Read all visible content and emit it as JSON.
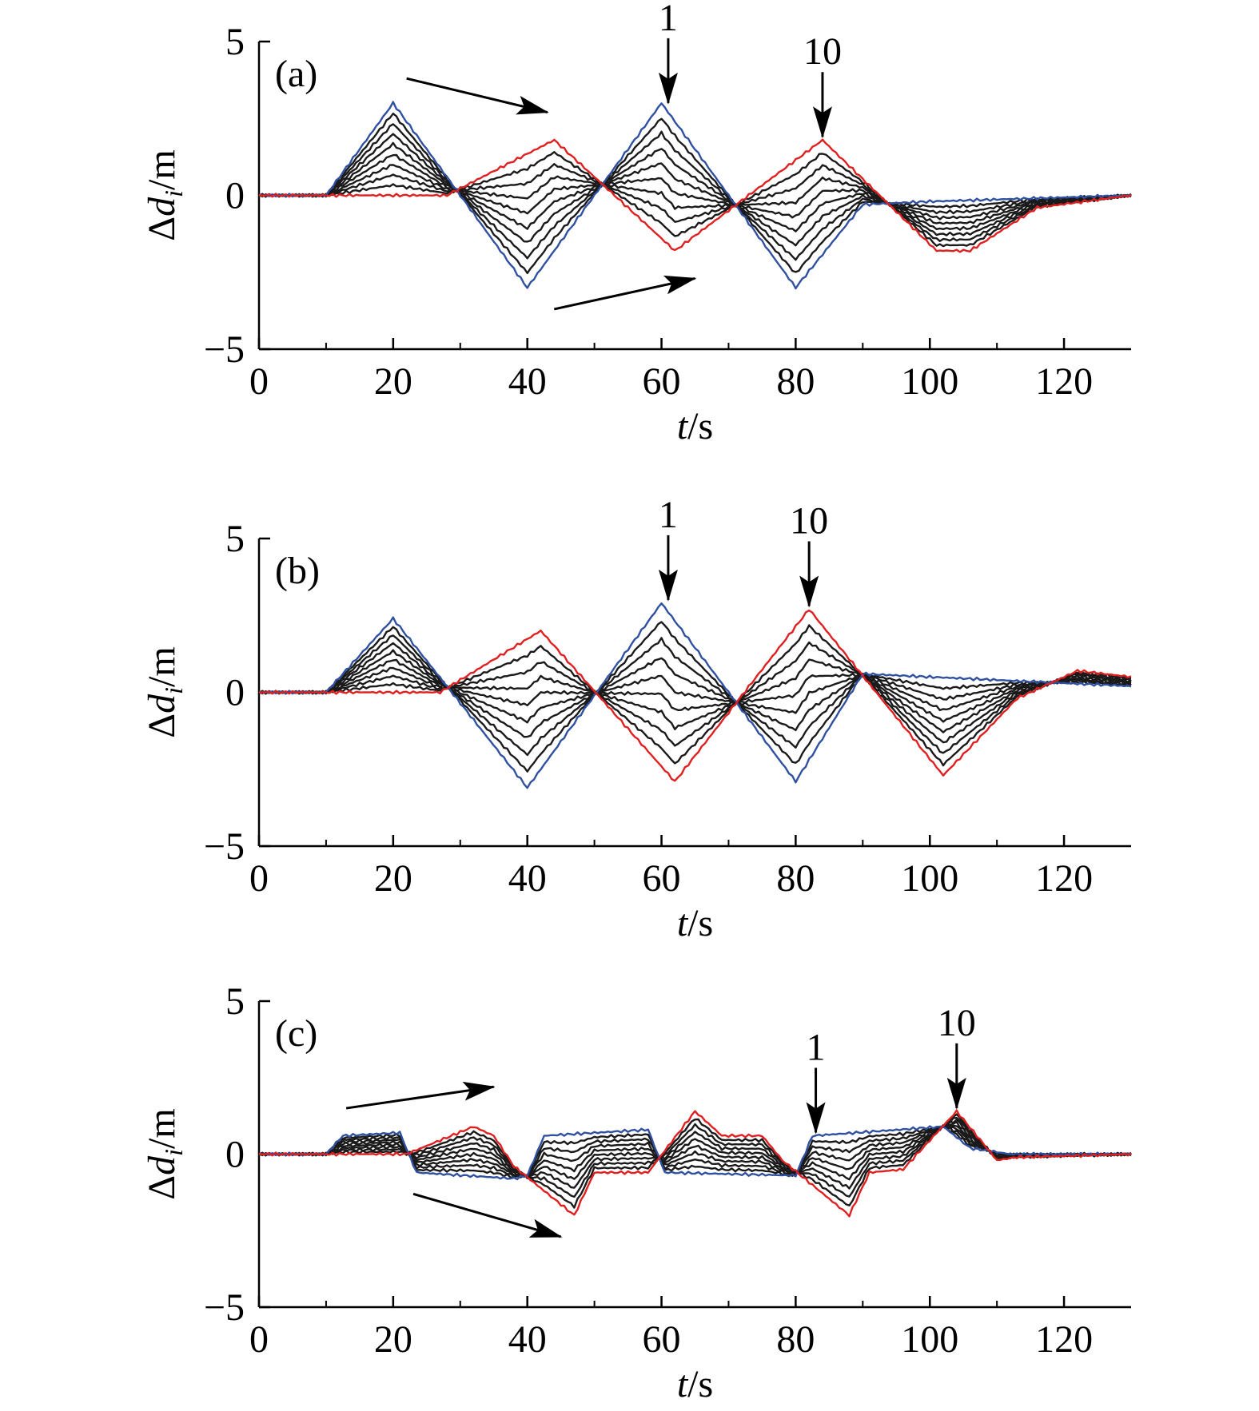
{
  "chart_data": [
    {
      "type": "line",
      "panel_label": "(a)",
      "xlabel": {
        "var": "t",
        "unit": "/s"
      },
      "ylabel": {
        "prefix": "Δ",
        "var": "d",
        "sub": "i",
        "unit": "/m"
      },
      "xlim": [
        0,
        130
      ],
      "ylim": [
        -5,
        5
      ],
      "xticks": [
        "0",
        "20",
        "40",
        "60",
        "80",
        "100",
        "120"
      ],
      "yticks": [
        "−5",
        "0",
        "5"
      ],
      "colors": {
        "first": "#3050a0",
        "middle": "#1a1a1a",
        "last": "#e02020"
      },
      "series_count": 10,
      "first_series": [
        [
          0,
          0
        ],
        [
          10,
          0
        ],
        [
          20,
          3
        ],
        [
          40,
          -3
        ],
        [
          60,
          3
        ],
        [
          80,
          -3
        ],
        [
          90,
          -0.3
        ],
        [
          100,
          -0.2
        ],
        [
          130,
          0
        ]
      ],
      "last_series": [
        [
          0,
          0
        ],
        [
          28,
          0
        ],
        [
          44,
          1.8
        ],
        [
          62,
          -1.8
        ],
        [
          84,
          1.8
        ],
        [
          101,
          -1.8
        ],
        [
          106,
          -1.8
        ],
        [
          116,
          -0.4
        ],
        [
          130,
          0
        ]
      ],
      "annotations": [
        {
          "text": "1",
          "x": 61,
          "y": 2.9
        },
        {
          "text": "10",
          "x": 84,
          "y": 1.8
        }
      ],
      "arrows": [
        {
          "from": [
            22,
            3.8
          ],
          "to": [
            43,
            2.7
          ]
        },
        {
          "from": [
            44,
            -3.7
          ],
          "to": [
            65,
            -2.7
          ]
        }
      ]
    },
    {
      "type": "line",
      "panel_label": "(b)",
      "xlabel": {
        "var": "t",
        "unit": "/s"
      },
      "ylabel": {
        "prefix": "Δ",
        "var": "d",
        "sub": "i",
        "unit": "/m"
      },
      "xlim": [
        0,
        130
      ],
      "ylim": [
        -5,
        5
      ],
      "xticks": [
        "0",
        "20",
        "40",
        "60",
        "80",
        "100",
        "120"
      ],
      "yticks": [
        "−5",
        "0",
        "5"
      ],
      "colors": {
        "first": "#3050a0",
        "middle": "#1a1a1a",
        "last": "#e02020"
      },
      "series_count": 10,
      "first_series": [
        [
          0,
          0
        ],
        [
          10,
          0
        ],
        [
          20,
          2.4
        ],
        [
          40,
          -3.1
        ],
        [
          60,
          2.9
        ],
        [
          80,
          -2.9
        ],
        [
          90,
          0.6
        ],
        [
          110,
          0.4
        ],
        [
          130,
          0.2
        ]
      ],
      "last_series": [
        [
          0,
          0
        ],
        [
          27,
          0
        ],
        [
          42,
          2
        ],
        [
          62,
          -2.9
        ],
        [
          82,
          2.7
        ],
        [
          102,
          -2.7
        ],
        [
          113,
          -0.2
        ],
        [
          122,
          0.7
        ],
        [
          130,
          0.5
        ]
      ],
      "annotations": [
        {
          "text": "1",
          "x": 61,
          "y": 2.9
        },
        {
          "text": "10",
          "x": 82,
          "y": 2.7
        }
      ],
      "arrows": []
    },
    {
      "type": "line",
      "panel_label": "(c)",
      "xlabel": {
        "var": "t",
        "unit": "/s"
      },
      "ylabel": {
        "prefix": "Δ",
        "var": "d",
        "sub": "i",
        "unit": "/m"
      },
      "xlim": [
        0,
        130
      ],
      "ylim": [
        -5,
        5
      ],
      "xticks": [
        "0",
        "20",
        "40",
        "60",
        "80",
        "100",
        "120"
      ],
      "yticks": [
        "−5",
        "0",
        "5"
      ],
      "colors": {
        "first": "#3050a0",
        "middle": "#1a1a1a",
        "last": "#e02020"
      },
      "series_count": 10,
      "first_series": [
        [
          0,
          0
        ],
        [
          10,
          0
        ],
        [
          12.5,
          0.6
        ],
        [
          21,
          0.7
        ],
        [
          23.5,
          -0.6
        ],
        [
          38,
          -0.8
        ],
        [
          40,
          -0.7
        ],
        [
          42.5,
          0.6
        ],
        [
          58,
          0.8
        ],
        [
          60.5,
          -0.6
        ],
        [
          80,
          -0.7
        ],
        [
          82.5,
          0.6
        ],
        [
          102,
          0.9
        ],
        [
          106,
          0.2
        ],
        [
          112,
          0
        ],
        [
          130,
          0
        ]
      ],
      "last_series": [
        [
          0,
          0
        ],
        [
          22,
          0
        ],
        [
          32,
          0.9
        ],
        [
          35,
          0.6
        ],
        [
          38,
          -0.4
        ],
        [
          47,
          -2
        ],
        [
          50,
          -0.6
        ],
        [
          58,
          -0.6
        ],
        [
          65,
          1.4
        ],
        [
          69,
          0.6
        ],
        [
          75,
          0.6
        ],
        [
          78,
          -0.2
        ],
        [
          88,
          -2
        ],
        [
          91,
          -0.6
        ],
        [
          96,
          -0.5
        ],
        [
          104,
          1.4
        ],
        [
          107,
          0.6
        ],
        [
          110,
          -0.2
        ],
        [
          113,
          -0.1
        ],
        [
          130,
          0
        ]
      ],
      "annotations": [
        {
          "text": "1",
          "x": 83,
          "y": 0.6
        },
        {
          "text": "10",
          "x": 104,
          "y": 1.4
        }
      ],
      "arrows": [
        {
          "from": [
            13,
            1.5
          ],
          "to": [
            35,
            2.2
          ]
        },
        {
          "from": [
            23,
            -1.3
          ],
          "to": [
            45,
            -2.7
          ]
        }
      ]
    }
  ]
}
